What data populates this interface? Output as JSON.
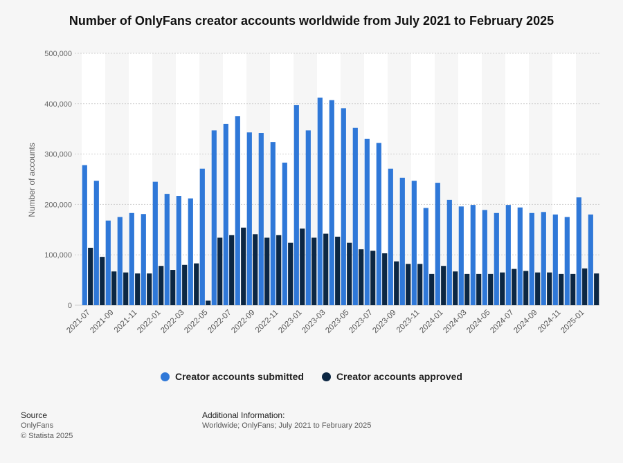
{
  "title": "Number of OnlyFans creator accounts worldwide from July 2021 to February 2025",
  "legend": {
    "submitted": "Creator accounts submitted",
    "approved": "Creator accounts approved"
  },
  "source": {
    "header": "Source",
    "line1": "OnlyFans",
    "line2": "© Statista 2025"
  },
  "additional": {
    "header": "Additional Information:",
    "line1": "Worldwide; OnlyFans; July 2021 to February 2025"
  },
  "chart_data": {
    "type": "bar",
    "title": "Number of OnlyFans creator accounts worldwide from July 2021 to February 2025",
    "ylabel": "Number of accounts",
    "xlabel": "",
    "ylim": [
      0,
      500000
    ],
    "yticks": [
      0,
      100000,
      200000,
      300000,
      400000,
      500000
    ],
    "ytick_labels": [
      "0",
      "100,000",
      "200,000",
      "300,000",
      "400,000",
      "500,000"
    ],
    "grid": true,
    "legend_position": "bottom",
    "colors": {
      "submitted": "#2f78d8",
      "approved": "#0c2743"
    },
    "categories": [
      "2021-07",
      "2021-08",
      "2021-09",
      "2021-10",
      "2021-11",
      "2021-12",
      "2022-01",
      "2022-02",
      "2022-03",
      "2022-04",
      "2022-05",
      "2022-06",
      "2022-07",
      "2022-08",
      "2022-09",
      "2022-10",
      "2022-11",
      "2022-12",
      "2023-01",
      "2023-02",
      "2023-03",
      "2023-04",
      "2023-05",
      "2023-06",
      "2023-07",
      "2023-08",
      "2023-09",
      "2023-10",
      "2023-11",
      "2023-12",
      "2024-01",
      "2024-02",
      "2024-03",
      "2024-04",
      "2024-05",
      "2024-06",
      "2024-07",
      "2024-08",
      "2024-09",
      "2024-10",
      "2024-11",
      "2024-12",
      "2025-01",
      "2025-02"
    ],
    "tick_labels": [
      "2021-07",
      "2021-09",
      "2021-11",
      "2022-01",
      "2022-03",
      "2022-05",
      "2022-07",
      "2022-09",
      "2022-11",
      "2023-01",
      "2023-03",
      "2023-05",
      "2023-07",
      "2023-09",
      "2023-11",
      "2024-01",
      "2024-03",
      "2024-05",
      "2024-07",
      "2024-09",
      "2024-11",
      "2025-01"
    ],
    "series": [
      {
        "name": "Creator accounts submitted",
        "values": [
          278000,
          247000,
          168000,
          175000,
          183000,
          181000,
          245000,
          221000,
          217000,
          212000,
          271000,
          347000,
          360000,
          375000,
          343000,
          342000,
          324000,
          283000,
          397000,
          347000,
          412000,
          407000,
          391000,
          352000,
          330000,
          322000,
          271000,
          253000,
          247000,
          193000,
          243000,
          209000,
          196000,
          199000,
          189000,
          183000,
          199000,
          194000,
          183000,
          185000,
          180000,
          175000,
          214000,
          180000
        ]
      },
      {
        "name": "Creator accounts approved",
        "values": [
          114000,
          96000,
          67000,
          65000,
          63000,
          63000,
          78000,
          70000,
          80000,
          83000,
          9000,
          134000,
          139000,
          154000,
          141000,
          134000,
          139000,
          124000,
          152000,
          134000,
          142000,
          136000,
          124000,
          111000,
          108000,
          103000,
          87000,
          82000,
          82000,
          62000,
          78000,
          67000,
          62000,
          62000,
          62000,
          65000,
          72000,
          68000,
          65000,
          65000,
          62000,
          62000,
          73000,
          63000
        ]
      }
    ]
  }
}
